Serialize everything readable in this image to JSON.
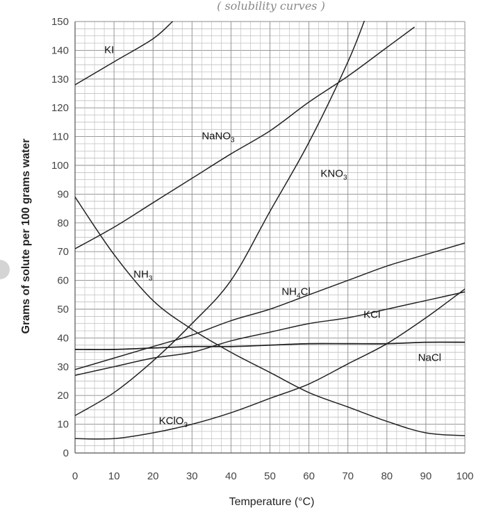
{
  "caption": "( solubility curves )",
  "chart_data": {
    "type": "line",
    "xlabel": "Temperature (°C)",
    "ylabel": "Grams of solute per 100 grams water",
    "xlim": [
      0,
      100
    ],
    "ylim": [
      0,
      150
    ],
    "xticks": [
      "0",
      "10",
      "20",
      "30",
      "40",
      "50",
      "60",
      "70",
      "80",
      "90",
      "100"
    ],
    "yticks": [
      "0",
      "10",
      "20",
      "30",
      "40",
      "50",
      "60",
      "70",
      "80",
      "90",
      "100",
      "110",
      "120",
      "130",
      "140",
      "150"
    ],
    "grid": true,
    "series": [
      {
        "name": "KI",
        "label_main": "KI",
        "label_sub": "",
        "label_at": [
          7.5,
          139
        ],
        "x": [
          0,
          10,
          20,
          25
        ],
        "y": [
          128,
          136,
          144,
          150
        ]
      },
      {
        "name": "NaNO3",
        "label_main": "NaNO",
        "label_sub": "3",
        "label_at": [
          32.5,
          109
        ],
        "x": [
          0,
          10,
          20,
          30,
          40,
          50,
          60,
          70,
          80,
          87
        ],
        "y": [
          71,
          78.5,
          87,
          95.5,
          104,
          112,
          122,
          131,
          141,
          148
        ]
      },
      {
        "name": "KNO3",
        "label_main": "KNO",
        "label_sub": "3",
        "label_at": [
          63,
          96
        ],
        "x": [
          0,
          10,
          20,
          30,
          40,
          50,
          60,
          70,
          75,
          78
        ],
        "y": [
          13,
          21,
          32,
          45,
          60,
          84,
          108,
          136,
          153,
          163
        ]
      },
      {
        "name": "NH3",
        "label_main": "NH",
        "label_sub": "3",
        "label_at": [
          15,
          61
        ],
        "x": [
          0,
          10,
          20,
          30,
          40,
          50,
          60,
          70,
          80,
          90,
          100
        ],
        "y": [
          89,
          69,
          53,
          43,
          35,
          28,
          21,
          16,
          11,
          7,
          6
        ]
      },
      {
        "name": "NH4Cl",
        "label_main": "NH",
        "label_sub": "4",
        "label_after": "Cl",
        "label_at": [
          53,
          55
        ],
        "x": [
          0,
          10,
          20,
          30,
          40,
          50,
          60,
          70,
          80,
          90,
          100
        ],
        "y": [
          29,
          33,
          37,
          41,
          46,
          50,
          55,
          60,
          65,
          69,
          73
        ]
      },
      {
        "name": "KCl",
        "label_main": "KCl",
        "label_sub": "",
        "label_at": [
          74,
          47
        ],
        "x": [
          0,
          10,
          20,
          30,
          40,
          50,
          60,
          70,
          80,
          90,
          100
        ],
        "y": [
          27,
          30,
          33,
          35,
          39,
          42,
          45,
          47,
          50,
          53,
          56
        ]
      },
      {
        "name": "NaCl",
        "label_main": "NaCl",
        "label_sub": "",
        "label_at": [
          88,
          32
        ],
        "x": [
          0,
          10,
          20,
          30,
          40,
          50,
          60,
          70,
          80,
          90,
          100
        ],
        "y": [
          36,
          36,
          36.5,
          37,
          37,
          37.5,
          38,
          38,
          38,
          38.5,
          38.5
        ]
      },
      {
        "name": "KClO3",
        "label_main": "KClO",
        "label_sub": "3",
        "label_at": [
          21.5,
          10
        ],
        "x": [
          0,
          10,
          20,
          30,
          40,
          50,
          60,
          70,
          80,
          90,
          100
        ],
        "y": [
          5,
          5,
          7,
          10,
          14,
          19,
          24,
          31,
          38,
          47,
          57
        ]
      }
    ]
  }
}
